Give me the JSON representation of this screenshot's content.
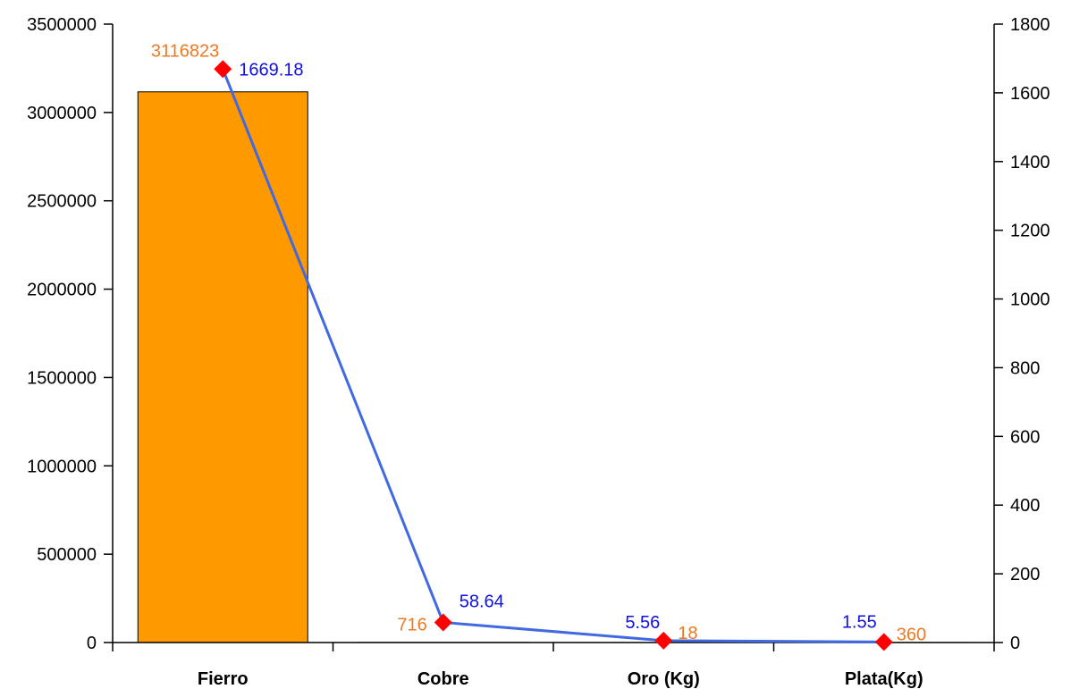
{
  "chart_data": {
    "type": "bar",
    "categories": [
      "Fierro",
      "Cobre",
      "Oro (Kg)",
      "Plata(Kg)"
    ],
    "series": [
      {
        "type": "bar",
        "axis": "left",
        "values": [
          3116823,
          716,
          18,
          360
        ],
        "labels": [
          "3116823",
          "716",
          "18",
          "360"
        ],
        "color": "#FF9900",
        "label_color": "#F07820"
      },
      {
        "type": "line",
        "axis": "right",
        "values": [
          1669.18,
          58.64,
          5.56,
          1.55
        ],
        "labels": [
          "1669.18",
          "58.64",
          "5.56",
          "1.55"
        ],
        "color": "#4169E1",
        "marker": "diamond",
        "marker_color": "#FF0000",
        "label_color": "#1010E0"
      }
    ],
    "y_left": {
      "range": [
        0,
        3500000
      ],
      "ticks": [
        "0",
        "500000",
        "1000000",
        "1500000",
        "2000000",
        "2500000",
        "3000000",
        "3500000"
      ]
    },
    "y_right": {
      "range": [
        0,
        1800
      ],
      "ticks": [
        "0",
        "200",
        "400",
        "600",
        "800",
        "1000",
        "1200",
        "1400",
        "1600",
        "1800"
      ]
    },
    "grid": false,
    "legend": "none"
  }
}
